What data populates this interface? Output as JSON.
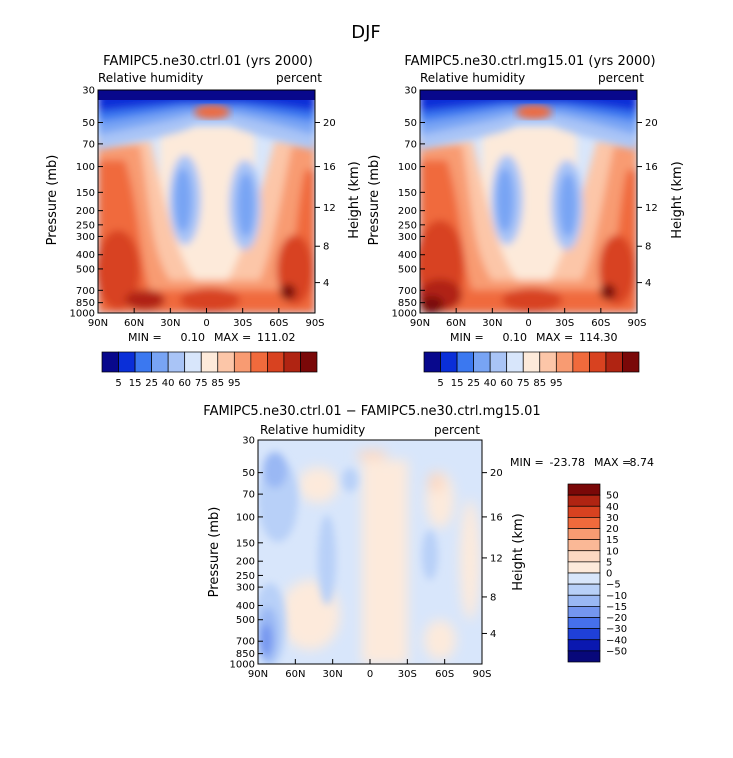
{
  "figure": {
    "season_title": "DJF"
  },
  "chart_data": [
    {
      "type": "heatmap",
      "id": "panel-ctrl",
      "title": "FAMIPC5.ne30.ctrl.01 (yrs 2000)",
      "variable": "Relative humidity",
      "units": "percent",
      "ylabel": "Pressure (mb)",
      "ylabel_right": "Height (km)",
      "xlabel": "",
      "x_ticks": [
        "90N",
        "60N",
        "30N",
        "0",
        "30S",
        "60S",
        "90S"
      ],
      "x_tick_values": [
        90,
        60,
        30,
        0,
        -30,
        -60,
        -90
      ],
      "xlim": [
        90,
        -90
      ],
      "y_ticks": [
        "30",
        "50",
        "70",
        "100",
        "150",
        "200",
        "250",
        "300",
        "400",
        "500",
        "700",
        "850",
        "1000"
      ],
      "y_tick_values": [
        30,
        50,
        70,
        100,
        150,
        200,
        250,
        300,
        400,
        500,
        700,
        850,
        1000
      ],
      "ylim": [
        1000,
        30
      ],
      "height_ticks": [
        "20",
        "16",
        "12",
        "8",
        "4"
      ],
      "height_tick_pressures": [
        50,
        100,
        190,
        350,
        620
      ],
      "min_label": "MIN =",
      "min_value": "0.10",
      "max_label": "MAX =",
      "max_value": "111.02",
      "colorbar_levels": [
        "5",
        "15",
        "25",
        "40",
        "60",
        "75",
        "85",
        "95"
      ],
      "colorbar_colors": [
        "#08088c",
        "#0a2fd8",
        "#3b78f0",
        "#78a4f4",
        "#a9c4f6",
        "#d8e6fb",
        "#fdeada",
        "#fcc6a8",
        "#f89b72",
        "#f06a3c",
        "#d84220",
        "#b02412",
        "#7a0808"
      ],
      "contour_hint": "moist tropics near surface, dry subtropics, very dry stratosphere"
    },
    {
      "type": "heatmap",
      "id": "panel-mg15",
      "title": "FAMIPC5.ne30.ctrl.mg15.01 (yrs 2000)",
      "variable": "Relative humidity",
      "units": "percent",
      "ylabel": "Pressure (mb)",
      "ylabel_right": "Height (km)",
      "xlabel": "",
      "x_ticks": [
        "90N",
        "60N",
        "30N",
        "0",
        "30S",
        "60S",
        "90S"
      ],
      "x_tick_values": [
        90,
        60,
        30,
        0,
        -30,
        -60,
        -90
      ],
      "xlim": [
        90,
        -90
      ],
      "y_ticks": [
        "30",
        "50",
        "70",
        "100",
        "150",
        "200",
        "250",
        "300",
        "400",
        "500",
        "700",
        "850",
        "1000"
      ],
      "y_tick_values": [
        30,
        50,
        70,
        100,
        150,
        200,
        250,
        300,
        400,
        500,
        700,
        850,
        1000
      ],
      "ylim": [
        1000,
        30
      ],
      "height_ticks": [
        "20",
        "16",
        "12",
        "8",
        "4"
      ],
      "height_tick_pressures": [
        50,
        100,
        190,
        350,
        620
      ],
      "min_label": "MIN =",
      "min_value": "0.10",
      "max_label": "MAX =",
      "max_value": "114.30",
      "colorbar_levels": [
        "5",
        "15",
        "25",
        "40",
        "60",
        "75",
        "85",
        "95"
      ],
      "colorbar_colors": [
        "#08088c",
        "#0a2fd8",
        "#3b78f0",
        "#78a4f4",
        "#a9c4f6",
        "#d8e6fb",
        "#fdeada",
        "#fcc6a8",
        "#f89b72",
        "#f06a3c",
        "#d84220",
        "#b02412",
        "#7a0808"
      ]
    },
    {
      "type": "heatmap",
      "id": "panel-diff",
      "title": "FAMIPC5.ne30.ctrl.01 − FAMIPC5.ne30.ctrl.mg15.01",
      "variable": "Relative humidity",
      "units": "percent",
      "ylabel": "Pressure (mb)",
      "ylabel_right": "Height (km)",
      "xlabel": "",
      "x_ticks": [
        "90N",
        "60N",
        "30N",
        "0",
        "30S",
        "60S",
        "90S"
      ],
      "x_tick_values": [
        90,
        60,
        30,
        0,
        -30,
        -60,
        -90
      ],
      "xlim": [
        90,
        -90
      ],
      "y_ticks": [
        "30",
        "50",
        "70",
        "100",
        "150",
        "200",
        "250",
        "300",
        "400",
        "500",
        "700",
        "850",
        "1000"
      ],
      "y_tick_values": [
        30,
        50,
        70,
        100,
        150,
        200,
        250,
        300,
        400,
        500,
        700,
        850,
        1000
      ],
      "ylim": [
        1000,
        30
      ],
      "height_ticks": [
        "20",
        "16",
        "12",
        "8",
        "4"
      ],
      "height_tick_pressures": [
        50,
        100,
        190,
        350,
        620
      ],
      "min_label": "MIN =",
      "min_value": "-23.78",
      "max_label": "MAX =",
      "max_value": "8.74",
      "colorbar_levels": [
        "50",
        "40",
        "30",
        "20",
        "15",
        "10",
        "5",
        "0",
        "−5",
        "−10",
        "−15",
        "−20",
        "−30",
        "−40",
        "−50"
      ],
      "colorbar_colors": [
        "#7a0808",
        "#b02412",
        "#d84220",
        "#f06a3c",
        "#f89b72",
        "#fab896",
        "#fcd8c2",
        "#fdeadb",
        "#d8e6fb",
        "#b8d0f8",
        "#9ab8f4",
        "#7496f0",
        "#4670ec",
        "#1f40d8",
        "#0a18b0",
        "#08087a"
      ]
    }
  ]
}
